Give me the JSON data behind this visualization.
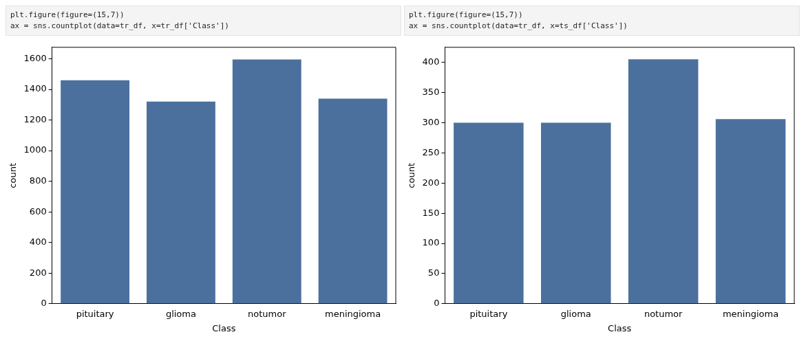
{
  "chart_data": [
    {
      "type": "bar",
      "annotations": [
        "plt.figure(figure=(15,7))",
        "ax = sns.countplot(data=tr_df, x=tr_df['Class'])"
      ],
      "xlabel": "Class",
      "ylabel": "count",
      "categories": [
        "pituitary",
        "glioma",
        "notumor",
        "meningioma"
      ],
      "values": [
        1460,
        1320,
        1595,
        1340
      ],
      "color": "#4b709d",
      "ylim": [
        0,
        1675
      ],
      "yticks": [
        0,
        200,
        400,
        600,
        800,
        1000,
        1200,
        1400,
        1600
      ],
      "grid": false,
      "legend": false
    },
    {
      "type": "bar",
      "annotations": [
        "plt.figure(figure=(15,7))",
        "ax = sns.countplot(data=tr_df, x=ts_df['Class'])"
      ],
      "xlabel": "Class",
      "ylabel": "count",
      "categories": [
        "pituitary",
        "glioma",
        "notumor",
        "meningioma"
      ],
      "values": [
        300,
        300,
        405,
        306
      ],
      "color": "#4b709d",
      "ylim": [
        0,
        425
      ],
      "yticks": [
        0,
        50,
        100,
        150,
        200,
        250,
        300,
        350,
        400
      ],
      "grid": false,
      "legend": false
    }
  ]
}
